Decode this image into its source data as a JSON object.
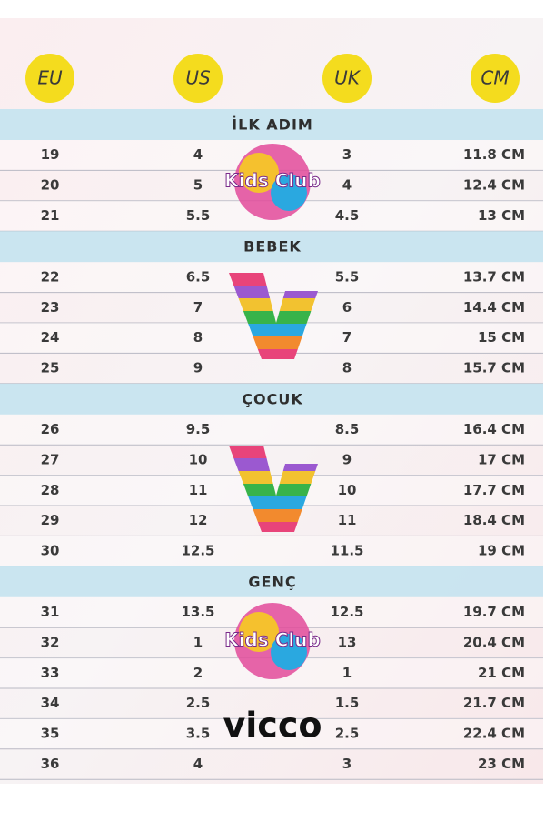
{
  "header": {
    "columns": [
      "EU",
      "US",
      "UK",
      "CM"
    ]
  },
  "sections": [
    {
      "title": "İLK ADIM",
      "rows": [
        [
          "19",
          "4",
          "3",
          "11.8 CM"
        ],
        [
          "20",
          "5",
          "4",
          "12.4 CM"
        ],
        [
          "21",
          "5.5",
          "4.5",
          "13 CM"
        ]
      ]
    },
    {
      "title": "BEBEK",
      "rows": [
        [
          "22",
          "6.5",
          "5.5",
          "13.7 CM"
        ],
        [
          "23",
          "7",
          "6",
          "14.4 CM"
        ],
        [
          "24",
          "8",
          "7",
          "15 CM"
        ],
        [
          "25",
          "9",
          "8",
          "15.7 CM"
        ]
      ]
    },
    {
      "title": "ÇOCUK",
      "rows": [
        [
          "26",
          "9.5",
          "8.5",
          "16.4 CM"
        ],
        [
          "27",
          "10",
          "9",
          "17 CM"
        ],
        [
          "28",
          "11",
          "10",
          "17.7 CM"
        ],
        [
          "29",
          "12",
          "11",
          "18.4 CM"
        ],
        [
          "30",
          "12.5",
          "11.5",
          "19 CM"
        ]
      ]
    },
    {
      "title": "GENÇ",
      "rows": [
        [
          "31",
          "13.5",
          "12.5",
          "19.7 CM"
        ],
        [
          "32",
          "1",
          "13",
          "20.4 CM"
        ],
        [
          "33",
          "2",
          "1",
          "21 CM"
        ],
        [
          "34",
          "2.5",
          "1.5",
          "21.7 CM"
        ],
        [
          "35",
          "3.5",
          "2.5",
          "22.4 CM"
        ],
        [
          "36",
          "4",
          "3",
          "23 CM"
        ]
      ]
    }
  ],
  "logos": [
    "Kids Club",
    "Kids Club",
    "vicco"
  ]
}
